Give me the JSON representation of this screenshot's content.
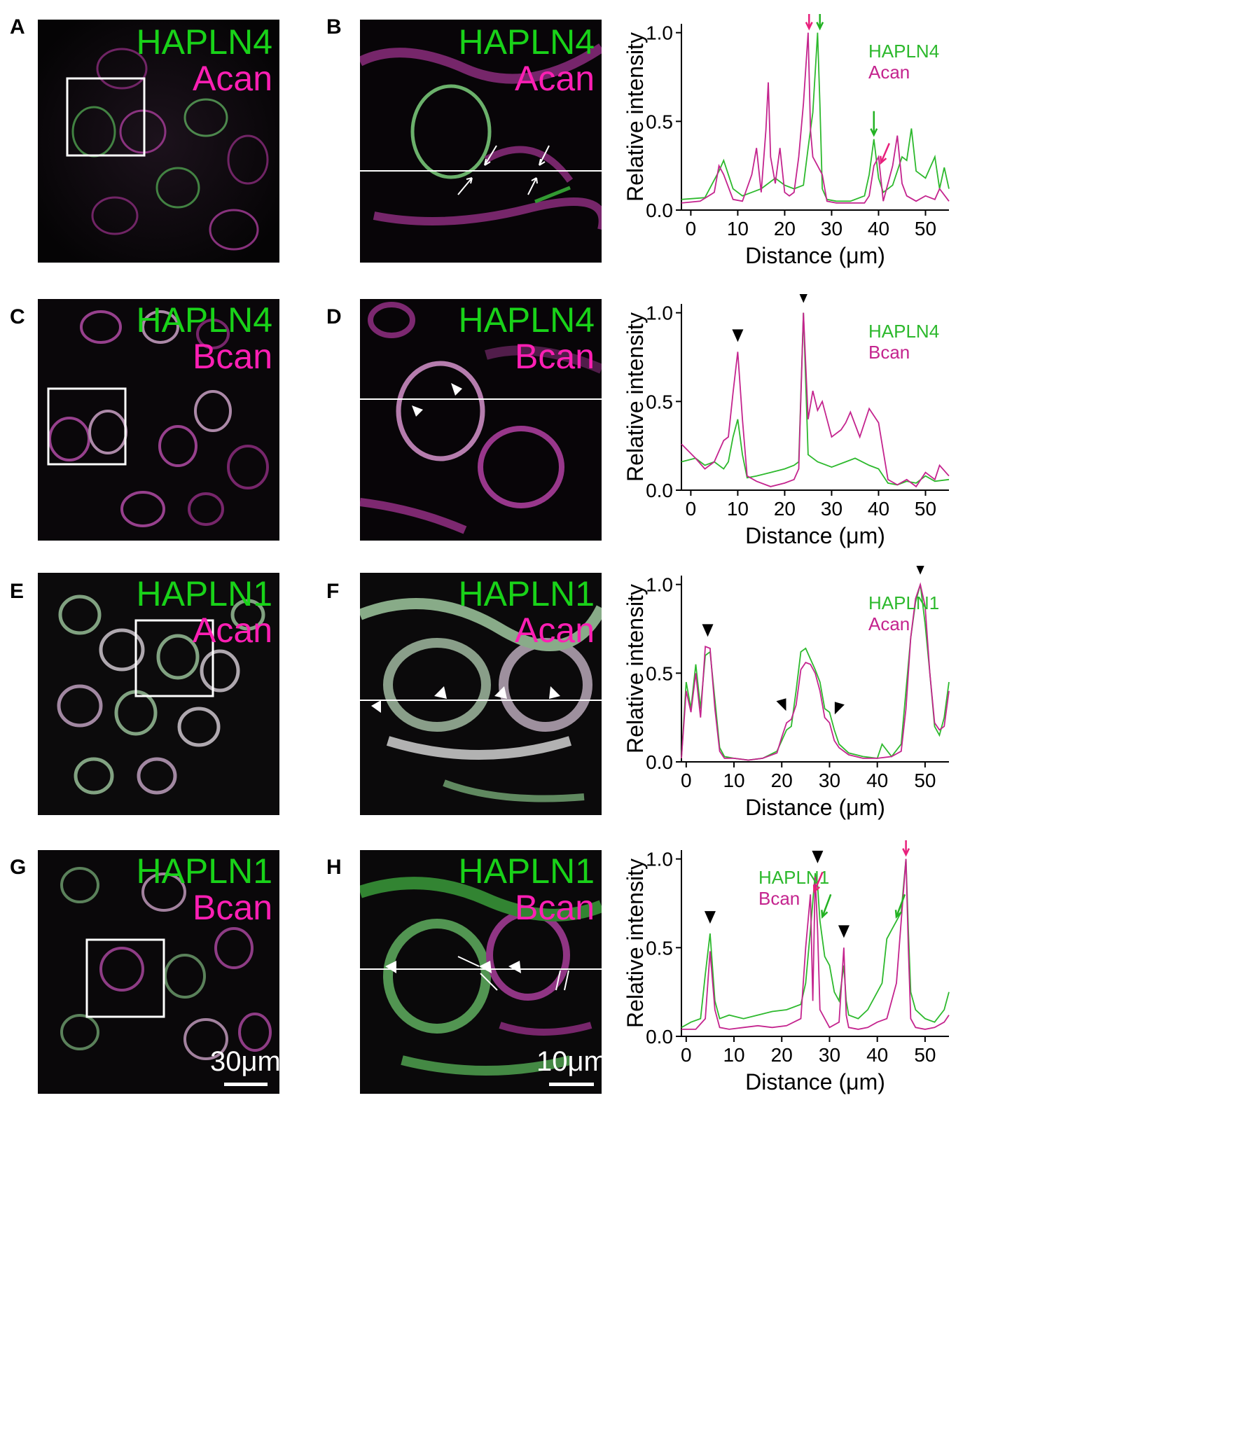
{
  "colors": {
    "green": "#2db92d",
    "magenta": "#c4248e",
    "label_green": "#19d219",
    "label_magenta": "#ff1fb4",
    "arrow_magenta": "#e8207c",
    "arrow_green": "#23b223"
  },
  "panels": {
    "A": {
      "letter": "A",
      "green": "HAPLN4",
      "magenta": "Acan"
    },
    "B": {
      "letter": "B",
      "green": "HAPLN4",
      "magenta": "Acan"
    },
    "C": {
      "letter": "C",
      "green": "HAPLN4",
      "magenta": "Bcan"
    },
    "D": {
      "letter": "D",
      "green": "HAPLN4",
      "magenta": "Bcan"
    },
    "E": {
      "letter": "E",
      "green": "HAPLN1",
      "magenta": "Acan"
    },
    "F": {
      "letter": "F",
      "green": "HAPLN1",
      "magenta": "Acan"
    },
    "G": {
      "letter": "G",
      "green": "HAPLN1",
      "magenta": "Bcan",
      "scale": "30μm"
    },
    "H": {
      "letter": "H",
      "green": "HAPLN1",
      "magenta": "Bcan",
      "scale": "10μm"
    }
  },
  "chart_data": [
    {
      "type": "line",
      "xlabel": "Distance (μm)",
      "ylabel": "Relative intensity",
      "xlim": [
        -2,
        55
      ],
      "ylim": [
        0,
        1.05
      ],
      "xticks": [
        0,
        10,
        20,
        30,
        40,
        50
      ],
      "yticks": [
        0.0,
        0.5,
        1.0
      ],
      "legend": "top-right",
      "series": [
        {
          "name": "HAPLN4",
          "color": "green",
          "x": [
            -2,
            3,
            6,
            7,
            9,
            11,
            13,
            15,
            16,
            18,
            20,
            22,
            24,
            25,
            26,
            27,
            27.5,
            28,
            29,
            31,
            34,
            37,
            38,
            39,
            40,
            41,
            43,
            44,
            45,
            46,
            47,
            48,
            50,
            52,
            53,
            54,
            55
          ],
          "y": [
            0.06,
            0.07,
            0.22,
            0.28,
            0.12,
            0.08,
            0.1,
            0.12,
            0.14,
            0.18,
            0.14,
            0.12,
            0.14,
            0.35,
            0.55,
            1.0,
            0.6,
            0.12,
            0.06,
            0.05,
            0.05,
            0.08,
            0.2,
            0.4,
            0.18,
            0.1,
            0.14,
            0.22,
            0.3,
            0.28,
            0.46,
            0.22,
            0.18,
            0.3,
            0.12,
            0.24,
            0.12
          ]
        },
        {
          "name": "Acan",
          "color": "magenta",
          "x": [
            -2,
            2,
            5,
            6,
            7,
            9,
            11,
            13,
            14,
            15,
            16,
            16.5,
            17,
            18,
            19,
            20,
            21,
            22,
            23,
            24,
            25,
            25.5,
            26,
            27,
            28,
            29,
            31,
            34,
            37,
            38,
            39,
            40,
            41,
            43,
            44,
            45,
            46,
            48,
            50,
            52,
            53,
            55
          ],
          "y": [
            0.04,
            0.05,
            0.1,
            0.25,
            0.2,
            0.06,
            0.05,
            0.2,
            0.35,
            0.1,
            0.45,
            0.72,
            0.3,
            0.15,
            0.35,
            0.1,
            0.08,
            0.1,
            0.3,
            0.6,
            1.0,
            0.45,
            0.3,
            0.25,
            0.2,
            0.05,
            0.04,
            0.04,
            0.04,
            0.08,
            0.25,
            0.3,
            0.05,
            0.25,
            0.42,
            0.15,
            0.08,
            0.05,
            0.08,
            0.06,
            0.12,
            0.05
          ]
        }
      ],
      "annotations": [
        {
          "type": "arrow",
          "color": "magenta",
          "x": 25.2,
          "y": 1.0
        },
        {
          "type": "arrow",
          "color": "green",
          "x": 27.5,
          "y": 1.0
        },
        {
          "type": "arrow",
          "color": "green",
          "x": 39,
          "y": 0.4
        },
        {
          "type": "arrow-diag",
          "color": "magenta",
          "x": 40.2,
          "y": 0.25
        }
      ]
    },
    {
      "type": "line",
      "xlabel": "Distance (μm)",
      "ylabel": "Relative intensity",
      "xlim": [
        -2,
        55
      ],
      "ylim": [
        0,
        1.05
      ],
      "xticks": [
        0,
        10,
        20,
        30,
        40,
        50
      ],
      "yticks": [
        0.0,
        0.5,
        1.0
      ],
      "legend": "top-right",
      "series": [
        {
          "name": "HAPLN4",
          "color": "green",
          "x": [
            -2,
            1,
            3,
            5,
            7,
            8,
            9,
            10,
            11,
            12,
            14,
            17,
            20,
            22,
            23,
            24,
            25,
            27,
            30,
            33,
            35,
            38,
            40,
            42,
            44,
            46,
            48,
            50,
            52,
            55
          ],
          "y": [
            0.16,
            0.18,
            0.14,
            0.16,
            0.12,
            0.16,
            0.3,
            0.4,
            0.2,
            0.07,
            0.08,
            0.1,
            0.12,
            0.14,
            0.16,
            1.0,
            0.2,
            0.16,
            0.13,
            0.16,
            0.18,
            0.14,
            0.12,
            0.04,
            0.03,
            0.05,
            0.04,
            0.08,
            0.05,
            0.06
          ]
        },
        {
          "name": "Bcan",
          "color": "magenta",
          "x": [
            -2,
            1,
            3,
            5,
            6,
            7,
            8,
            9,
            10,
            11,
            12,
            14,
            17,
            20,
            22,
            23,
            24,
            25,
            26,
            27,
            28,
            30,
            32,
            33,
            34,
            36,
            38,
            40,
            41,
            42,
            44,
            46,
            48,
            50,
            52,
            53,
            55
          ],
          "y": [
            0.26,
            0.18,
            0.12,
            0.16,
            0.22,
            0.28,
            0.3,
            0.55,
            0.78,
            0.4,
            0.08,
            0.05,
            0.02,
            0.04,
            0.06,
            0.12,
            1.0,
            0.4,
            0.56,
            0.45,
            0.5,
            0.3,
            0.34,
            0.38,
            0.44,
            0.3,
            0.46,
            0.38,
            0.22,
            0.06,
            0.03,
            0.06,
            0.02,
            0.1,
            0.06,
            0.14,
            0.08
          ]
        }
      ],
      "annotations": [
        {
          "type": "arrowhead",
          "x": 10,
          "y": 0.78
        },
        {
          "type": "arrowhead",
          "x": 24,
          "y": 1.0
        }
      ]
    },
    {
      "type": "line",
      "xlabel": "Distance (μm)",
      "ylabel": "Relative intensity",
      "xlim": [
        -1,
        55
      ],
      "ylim": [
        0,
        1.05
      ],
      "xticks": [
        0,
        10,
        20,
        30,
        40,
        50
      ],
      "yticks": [
        0.0,
        0.5,
        1.0
      ],
      "legend": "top-right",
      "series": [
        {
          "name": "HAPLN1",
          "color": "green",
          "x": [
            -1,
            0,
            1,
            2,
            3,
            4,
            5,
            6,
            7,
            8,
            10,
            13,
            16,
            19,
            20,
            21,
            22,
            23,
            24,
            25,
            26,
            27,
            28,
            29,
            30,
            31,
            32,
            34,
            37,
            40,
            41,
            43,
            45,
            46,
            47,
            48,
            49,
            50,
            51,
            52,
            53,
            54,
            55
          ],
          "y": [
            0.02,
            0.45,
            0.3,
            0.55,
            0.3,
            0.6,
            0.62,
            0.35,
            0.08,
            0.03,
            0.02,
            0.01,
            0.02,
            0.06,
            0.12,
            0.18,
            0.2,
            0.4,
            0.62,
            0.64,
            0.58,
            0.52,
            0.45,
            0.3,
            0.28,
            0.18,
            0.1,
            0.05,
            0.03,
            0.02,
            0.1,
            0.03,
            0.1,
            0.4,
            0.7,
            0.9,
            1.0,
            0.78,
            0.5,
            0.2,
            0.15,
            0.25,
            0.45
          ]
        },
        {
          "name": "Acan",
          "color": "magenta",
          "x": [
            -1,
            0,
            1,
            2,
            3,
            4,
            5,
            6,
            7,
            8,
            10,
            13,
            16,
            19,
            20,
            21,
            22,
            23,
            24,
            25,
            26,
            27,
            28,
            29,
            30,
            31,
            32,
            34,
            37,
            40,
            43,
            45,
            46,
            47,
            48,
            49,
            50,
            51,
            52,
            53,
            54,
            55
          ],
          "y": [
            0.02,
            0.4,
            0.28,
            0.5,
            0.25,
            0.65,
            0.64,
            0.3,
            0.06,
            0.02,
            0.02,
            0.01,
            0.02,
            0.05,
            0.14,
            0.22,
            0.24,
            0.32,
            0.52,
            0.56,
            0.55,
            0.5,
            0.4,
            0.25,
            0.22,
            0.12,
            0.08,
            0.04,
            0.02,
            0.02,
            0.03,
            0.06,
            0.3,
            0.7,
            0.92,
            1.0,
            0.88,
            0.5,
            0.22,
            0.18,
            0.2,
            0.4
          ]
        }
      ],
      "annotations": [
        {
          "type": "arrowhead",
          "x": 4.5,
          "y": 0.65
        },
        {
          "type": "arrowhead-diag-left",
          "x": 21.5,
          "y": 0.24
        },
        {
          "type": "arrowhead-diag-right",
          "x": 30.5,
          "y": 0.22
        },
        {
          "type": "arrowhead",
          "x": 49,
          "y": 1.0
        }
      ]
    },
    {
      "type": "line",
      "xlabel": "Distance (μm)",
      "ylabel": "Relative intensity",
      "xlim": [
        -1,
        55
      ],
      "ylim": [
        0,
        1.05
      ],
      "xticks": [
        0,
        10,
        20,
        30,
        40,
        50
      ],
      "yticks": [
        0.0,
        0.5,
        1.0
      ],
      "legend": "top-left",
      "series": [
        {
          "name": "HAPLN1",
          "color": "green",
          "x": [
            -1,
            1,
            3,
            4,
            5,
            6,
            7,
            9,
            12,
            15,
            18,
            21,
            24,
            25,
            26,
            27,
            27.5,
            28,
            29,
            30,
            31,
            32,
            33,
            33.5,
            34,
            36,
            38,
            40,
            41,
            42,
            43,
            44,
            45,
            46,
            46.5,
            47,
            48,
            50,
            52,
            54,
            55
          ],
          "y": [
            0.05,
            0.08,
            0.1,
            0.35,
            0.58,
            0.2,
            0.1,
            0.12,
            0.1,
            0.12,
            0.14,
            0.15,
            0.18,
            0.3,
            0.6,
            0.92,
            0.85,
            0.65,
            0.45,
            0.4,
            0.25,
            0.2,
            0.4,
            0.2,
            0.12,
            0.1,
            0.15,
            0.25,
            0.3,
            0.55,
            0.6,
            0.65,
            0.7,
            1.0,
            0.6,
            0.25,
            0.15,
            0.1,
            0.08,
            0.15,
            0.25
          ]
        },
        {
          "name": "Bcan",
          "color": "magenta",
          "x": [
            -1,
            2,
            4,
            5,
            6,
            7,
            9,
            12,
            15,
            18,
            21,
            24,
            25,
            26,
            26.5,
            27,
            27.5,
            28,
            30,
            32,
            33,
            33.5,
            34,
            36,
            38,
            40,
            42,
            44,
            45,
            46,
            46.5,
            47,
            48,
            50,
            52,
            54,
            55
          ],
          "y": [
            0.04,
            0.04,
            0.1,
            0.48,
            0.15,
            0.05,
            0.04,
            0.05,
            0.06,
            0.05,
            0.06,
            0.1,
            0.5,
            0.8,
            0.2,
            0.9,
            0.6,
            0.15,
            0.05,
            0.08,
            0.5,
            0.12,
            0.05,
            0.04,
            0.05,
            0.08,
            0.1,
            0.3,
            0.65,
            1.0,
            0.5,
            0.1,
            0.05,
            0.04,
            0.05,
            0.08,
            0.12
          ]
        }
      ],
      "annotations": [
        {
          "type": "arrowhead",
          "x": 5,
          "y": 0.58
        },
        {
          "type": "arrow-diag",
          "color": "magenta",
          "x": 26.5,
          "y": 0.8
        },
        {
          "type": "arrowhead",
          "x": 27.5,
          "y": 0.92
        },
        {
          "type": "arrow-diag-up",
          "color": "green",
          "x": 28.5,
          "y": 0.65
        },
        {
          "type": "arrowhead",
          "x": 33,
          "y": 0.5
        },
        {
          "type": "arrow-diag-up",
          "color": "green",
          "x": 44,
          "y": 0.65
        },
        {
          "type": "arrow",
          "color": "magenta",
          "x": 46,
          "y": 1.0
        }
      ]
    }
  ]
}
